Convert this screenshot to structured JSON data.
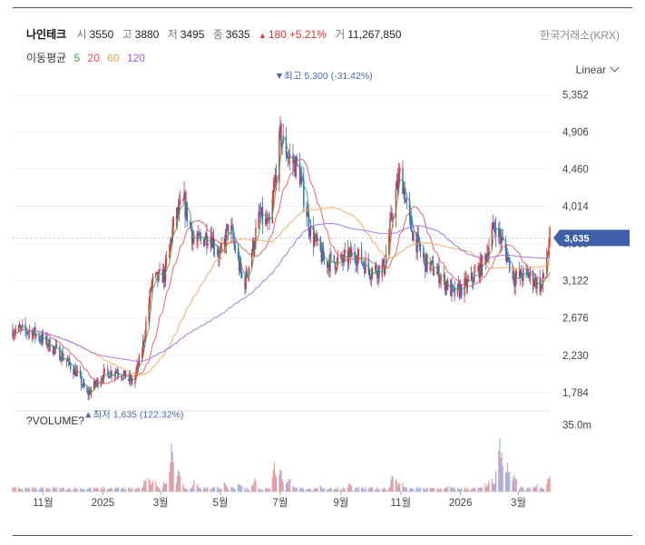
{
  "header": {
    "name": "나인테크",
    "open_label": "시",
    "open": "3550",
    "high_label": "고",
    "high": "3880",
    "low_label": "저",
    "low": "3495",
    "close_label": "종",
    "close": "3635",
    "change_arrow": "▲",
    "change": "180",
    "change_pct": "+5.21%",
    "volume_label": "거",
    "volume": "11,267,850"
  },
  "exchange": "한국거래소(KRX)",
  "ma_legend": {
    "title": "이동평균",
    "periods": [
      {
        "label": "5",
        "color": "#2aa54a"
      },
      {
        "label": "20",
        "color": "#e84d4d"
      },
      {
        "label": "60",
        "color": "#f0a050"
      },
      {
        "label": "120",
        "color": "#9a63e0"
      }
    ]
  },
  "scale_selector": "Linear",
  "chart_data": {
    "type": "candlestick",
    "x": [
      "2024-10",
      "2024-11",
      "2024-12",
      "2025-01",
      "2025-02",
      "2025-03",
      "2025-04",
      "2025-05",
      "2025-06",
      "2025-07",
      "2025-08",
      "2025-09",
      "2025-10",
      "2025-11",
      "2025-12",
      "2026-01",
      "2026-02",
      "2026-03",
      "2026-04"
    ],
    "y_ticks": [
      "5,352",
      "4,906",
      "4,460",
      "4,014",
      "3,568",
      "3,122",
      "2,676",
      "2,230",
      "1,784"
    ],
    "y_tick_values": [
      5352,
      4906,
      4460,
      4014,
      3568,
      3122,
      2676,
      2230,
      1784
    ],
    "ylim": [
      1620,
      5420
    ],
    "x_ticks": [
      {
        "label": "11월",
        "date": "2024-11-01"
      },
      {
        "label": "2025",
        "date": "2025-01-01"
      },
      {
        "label": "3월",
        "date": "2025-03-01"
      },
      {
        "label": "5월",
        "date": "2025-05-01"
      },
      {
        "label": "7월",
        "date": "2025-07-01"
      },
      {
        "label": "9월",
        "date": "2025-09-01"
      },
      {
        "label": "11월",
        "date": "2025-11-01"
      },
      {
        "label": "2026",
        "date": "2026-01-01"
      },
      {
        "label": "3월",
        "date": "2026-03-01"
      }
    ],
    "date_range": [
      "2024-10-01",
      "2026-04-02"
    ],
    "last_price": {
      "label": "3,635",
      "value": 3635
    },
    "high_annotation": {
      "text": "▼최고 5,300 (-31.42%)",
      "value": 5300,
      "date": "2025-06-29"
    },
    "low_annotation": {
      "text": "▲최저 1,635 (122.32%)",
      "value": 1635,
      "date": "2024-12-16"
    },
    "price_path": [
      [
        "2024-10-01",
        2530
      ],
      [
        "2024-10-20",
        2520
      ],
      [
        "2024-11-05",
        2380
      ],
      [
        "2024-11-20",
        2230
      ],
      [
        "2024-12-05",
        2020
      ],
      [
        "2024-12-16",
        1760
      ],
      [
        "2025-01-01",
        2000
      ],
      [
        "2025-01-15",
        2050
      ],
      [
        "2025-02-01",
        1900
      ],
      [
        "2025-02-10",
        2280
      ],
      [
        "2025-02-20",
        3100
      ],
      [
        "2025-03-05",
        3200
      ],
      [
        "2025-03-15",
        3850
      ],
      [
        "2025-03-25",
        4050
      ],
      [
        "2025-04-05",
        3550
      ],
      [
        "2025-04-20",
        3700
      ],
      [
        "2025-05-01",
        3400
      ],
      [
        "2025-05-10",
        3800
      ],
      [
        "2025-05-25",
        3050
      ],
      [
        "2025-06-10",
        3900
      ],
      [
        "2025-06-20",
        3750
      ],
      [
        "2025-07-01",
        4850
      ],
      [
        "2025-07-10",
        4600
      ],
      [
        "2025-07-20",
        4450
      ],
      [
        "2025-08-01",
        3700
      ],
      [
        "2025-08-15",
        3350
      ],
      [
        "2025-09-01",
        3350
      ],
      [
        "2025-09-15",
        3450
      ],
      [
        "2025-10-01",
        3250
      ],
      [
        "2025-10-15",
        3280
      ],
      [
        "2025-10-25",
        4050
      ],
      [
        "2025-11-01",
        4450
      ],
      [
        "2025-11-10",
        3800
      ],
      [
        "2025-11-25",
        3350
      ],
      [
        "2025-12-10",
        3200
      ],
      [
        "2025-12-25",
        2960
      ],
      [
        "2026-01-10",
        3100
      ],
      [
        "2026-01-25",
        3350
      ],
      [
        "2026-02-05",
        3800
      ],
      [
        "2026-02-15",
        3500
      ],
      [
        "2026-02-25",
        3150
      ],
      [
        "2026-03-10",
        3200
      ],
      [
        "2026-03-25",
        3050
      ],
      [
        "2026-04-02",
        3635
      ]
    ],
    "volume": {
      "title": "?VOLUME?",
      "y_ticks": [
        "35.0m"
      ],
      "y_tick_values": [
        35
      ],
      "unit": "m",
      "ylim": [
        0,
        40
      ],
      "spikes": [
        [
          "2025-02-15",
          12
        ],
        [
          "2025-02-22",
          9
        ],
        [
          "2025-03-05",
          6
        ],
        [
          "2025-03-12",
          26
        ],
        [
          "2025-03-20",
          14
        ],
        [
          "2025-04-05",
          7
        ],
        [
          "2025-05-05",
          5
        ],
        [
          "2025-05-20",
          6
        ],
        [
          "2025-06-05",
          8
        ],
        [
          "2025-06-25",
          17
        ],
        [
          "2025-07-01",
          14
        ],
        [
          "2025-07-10",
          9
        ],
        [
          "2025-08-10",
          4
        ],
        [
          "2025-09-10",
          5
        ],
        [
          "2025-10-25",
          13
        ],
        [
          "2025-11-01",
          7
        ],
        [
          "2025-12-20",
          4
        ],
        [
          "2026-01-25",
          5
        ],
        [
          "2026-02-01",
          9
        ],
        [
          "2026-02-10",
          33
        ],
        [
          "2026-02-18",
          18
        ],
        [
          "2026-02-25",
          10
        ],
        [
          "2026-03-20",
          4
        ],
        [
          "2026-04-02",
          10
        ]
      ]
    }
  }
}
